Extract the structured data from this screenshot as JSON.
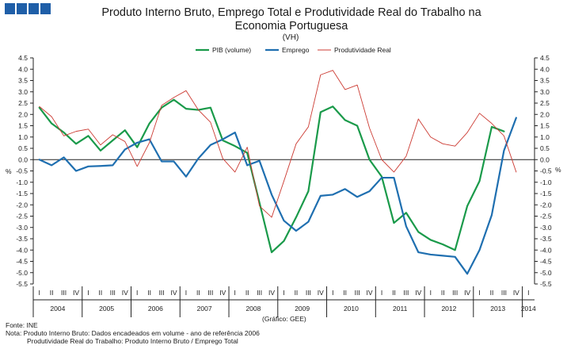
{
  "header": {
    "logo_color": "#1f5fa8",
    "title_line1": "Produto Interno Bruto, Emprego Total e Produtividade Real do Trabalho na",
    "title_line2": "Economia Portuguesa",
    "unit": "(VH)"
  },
  "footer": {
    "source_credit": "(Gráfico: GEE)",
    "fonte": "Fonte: INE",
    "nota1": "Nota: Produto Interno Bruto: Dados encadeados em volume - ano de referência 2006",
    "nota2": "Produtividade Real do Trabalho: Produto Interno Bruto / Emprego Total"
  },
  "chart_data": {
    "type": "line",
    "title": "Produto Interno Bruto, Emprego Total e Produtividade Real do Trabalho na Economia Portuguesa",
    "subtitle": "(VH)",
    "ylabel_left": "%",
    "ylabel_right": "%",
    "ylim": [
      -5.5,
      4.5
    ],
    "ytick_step": 0.5,
    "yticks": [
      "4.5",
      "4.0",
      "3.5",
      "3.0",
      "2.5",
      "2.0",
      "1.5",
      "1.0",
      "0.5",
      "0.0",
      "-0.5",
      "-1.0",
      "-1.5",
      "-2.0",
      "-2.5",
      "-3.0",
      "-3.5",
      "-4.0",
      "-4.5",
      "-5.0",
      "-5.5"
    ],
    "quarter_labels": [
      "I",
      "II",
      "III",
      "IV"
    ],
    "years": [
      "2004",
      "2005",
      "2006",
      "2007",
      "2008",
      "2009",
      "2010",
      "2011",
      "2012",
      "2013",
      "2014"
    ],
    "x": [
      "2004 I",
      "2004 II",
      "2004 III",
      "2004 IV",
      "2005 I",
      "2005 II",
      "2005 III",
      "2005 IV",
      "2006 I",
      "2006 II",
      "2006 III",
      "2006 IV",
      "2007 I",
      "2007 II",
      "2007 III",
      "2007 IV",
      "2008 I",
      "2008 II",
      "2008 III",
      "2008 IV",
      "2009 I",
      "2009 II",
      "2009 III",
      "2009 IV",
      "2010 I",
      "2010 II",
      "2010 III",
      "2010 IV",
      "2011 I",
      "2011 II",
      "2011 III",
      "2011 IV",
      "2012 I",
      "2012 II",
      "2012 III",
      "2012 IV",
      "2013 I",
      "2013 II",
      "2013 III",
      "2013 IV",
      "2014 I"
    ],
    "legend_position": "top",
    "grid": false,
    "series": [
      {
        "name": "PIB (volume)",
        "color": "#1a9a4a",
        "width": 2.2,
        "values": [
          2.3,
          1.6,
          1.2,
          0.7,
          1.05,
          0.4,
          0.85,
          1.3,
          0.55,
          1.6,
          2.3,
          2.65,
          2.25,
          2.2,
          2.3,
          0.85,
          0.6,
          0.3,
          -1.9,
          -4.1,
          -3.6,
          -2.55,
          -1.4,
          2.1,
          2.35,
          1.75,
          1.5,
          0.0,
          -0.75,
          -2.8,
          -2.35,
          -3.2,
          -3.55,
          -3.75,
          -4.0,
          -2.05,
          -0.95,
          1.45,
          1.25,
          null,
          null
        ]
      },
      {
        "name": "Emprego",
        "color": "#1f6fb0",
        "width": 2.2,
        "values": [
          0.0,
          -0.25,
          0.1,
          -0.5,
          -0.3,
          -0.28,
          -0.25,
          0.45,
          0.75,
          0.9,
          -0.08,
          -0.08,
          -0.75,
          0.05,
          0.65,
          0.9,
          1.2,
          -0.25,
          -0.05,
          -1.55,
          -2.7,
          -3.15,
          -2.75,
          -1.6,
          -1.55,
          -1.3,
          -1.65,
          -1.4,
          -0.8,
          -0.8,
          -2.95,
          -4.1,
          -4.2,
          -4.25,
          -4.3,
          -5.05,
          -4.0,
          -2.45,
          0.4,
          1.85,
          null
        ]
      },
      {
        "name": "Produtividade Real",
        "color": "#cc3b33",
        "width": 0.9,
        "values": [
          2.35,
          1.9,
          1.05,
          1.25,
          1.35,
          0.65,
          1.1,
          0.8,
          -0.3,
          0.75,
          2.4,
          2.75,
          3.05,
          2.2,
          1.65,
          0.05,
          -0.55,
          0.55,
          -2.05,
          -2.55,
          -0.95,
          0.7,
          1.45,
          3.75,
          3.95,
          3.1,
          3.3,
          1.4,
          0.0,
          -0.55,
          0.15,
          1.8,
          1.0,
          0.7,
          0.6,
          1.2,
          2.05,
          1.6,
          1.05,
          -0.55,
          null
        ]
      }
    ]
  }
}
